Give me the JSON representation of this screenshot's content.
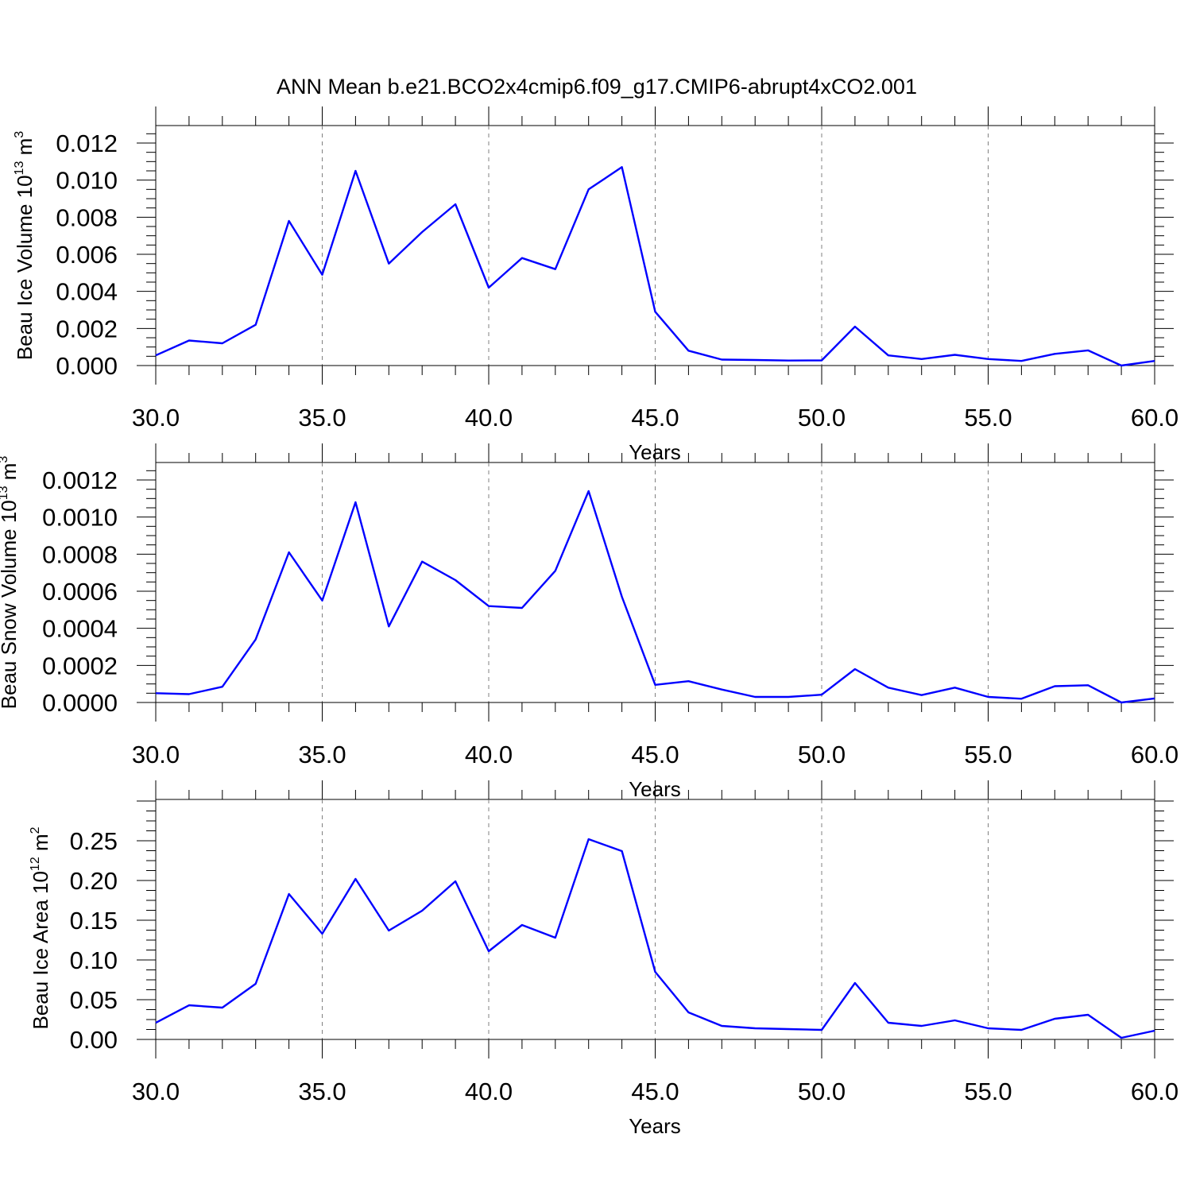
{
  "title": "ANN Mean b.e21.BCO2x4cmip6.f09_g17.CMIP6-abrupt4xCO2.001",
  "colors": {
    "series": "#0000ff",
    "grid": "#808080",
    "axis": "#000000"
  },
  "chart_data": [
    {
      "type": "line",
      "xlabel": "Years",
      "ylabel": {
        "main": "Beau Ice Volume 10",
        "exp": "13",
        "unit": " m",
        "unit_exp": "3"
      },
      "xlim": [
        30,
        60
      ],
      "ylim": [
        0,
        0.012
      ],
      "grid": "x-dashed",
      "x_ticks": [
        "30.0",
        "35.0",
        "40.0",
        "45.0",
        "50.0",
        "55.0",
        "60.0"
      ],
      "y_ticks": [
        "0.000",
        "0.002",
        "0.004",
        "0.006",
        "0.008",
        "0.010",
        "0.012"
      ],
      "x": [
        30,
        31,
        32,
        33,
        34,
        35,
        36,
        37,
        38,
        39,
        40,
        41,
        42,
        43,
        44,
        45,
        46,
        47,
        48,
        49,
        50,
        51,
        52,
        53,
        54,
        55,
        56,
        57,
        58,
        59,
        60
      ],
      "values": [
        0.00055,
        0.00135,
        0.0012,
        0.0022,
        0.0078,
        0.0049,
        0.0105,
        0.0055,
        0.0072,
        0.0087,
        0.0042,
        0.0058,
        0.0052,
        0.0095,
        0.0107,
        0.0029,
        0.0008,
        0.00032,
        0.0003,
        0.00027,
        0.00028,
        0.0021,
        0.00055,
        0.00035,
        0.00058,
        0.00035,
        0.00025,
        0.00063,
        0.00082,
        0.0,
        0.00025
      ]
    },
    {
      "type": "line",
      "xlabel": "Years",
      "ylabel": {
        "main": "Beau Snow Volume 10",
        "exp": "13",
        "unit": " m",
        "unit_exp": "3"
      },
      "xlim": [
        30,
        60
      ],
      "ylim": [
        0,
        0.0012
      ],
      "grid": "x-dashed",
      "x_ticks": [
        "30.0",
        "35.0",
        "40.0",
        "45.0",
        "50.0",
        "55.0",
        "60.0"
      ],
      "y_ticks": [
        "0.0000",
        "0.0002",
        "0.0004",
        "0.0006",
        "0.0008",
        "0.0010",
        "0.0012"
      ],
      "x": [
        30,
        31,
        32,
        33,
        34,
        35,
        36,
        37,
        38,
        39,
        40,
        41,
        42,
        43,
        44,
        45,
        46,
        47,
        48,
        49,
        50,
        51,
        52,
        53,
        54,
        55,
        56,
        57,
        58,
        59,
        60
      ],
      "values": [
        5e-05,
        4.5e-05,
        8.5e-05,
        0.00034,
        0.00081,
        0.00055,
        0.00108,
        0.00041,
        0.00076,
        0.00066,
        0.00052,
        0.00051,
        0.00071,
        0.00114,
        0.00057,
        9.5e-05,
        0.000115,
        7e-05,
        3e-05,
        3e-05,
        4.2e-05,
        0.00018,
        8e-05,
        4e-05,
        8e-05,
        3e-05,
        2e-05,
        8.8e-05,
        9.3e-05,
        0.0,
        2.2e-05
      ]
    },
    {
      "type": "line",
      "xlabel": "Years",
      "ylabel": {
        "main": "Beau Ice Area 10",
        "exp": "12",
        "unit": " m",
        "unit_exp": "2"
      },
      "xlim": [
        30,
        60
      ],
      "ylim": [
        0,
        0.28
      ],
      "grid": "x-dashed",
      "x_ticks": [
        "30.0",
        "35.0",
        "40.0",
        "45.0",
        "50.0",
        "55.0",
        "60.0"
      ],
      "y_ticks": [
        "0.00",
        "0.05",
        "0.10",
        "0.15",
        "0.20",
        "0.25"
      ],
      "x": [
        30,
        31,
        32,
        33,
        34,
        35,
        36,
        37,
        38,
        39,
        40,
        41,
        42,
        43,
        44,
        45,
        46,
        47,
        48,
        49,
        50,
        51,
        52,
        53,
        54,
        55,
        56,
        57,
        58,
        59,
        60
      ],
      "values": [
        0.021,
        0.043,
        0.04,
        0.07,
        0.183,
        0.133,
        0.202,
        0.137,
        0.162,
        0.199,
        0.111,
        0.144,
        0.128,
        0.252,
        0.237,
        0.085,
        0.034,
        0.017,
        0.014,
        0.013,
        0.012,
        0.071,
        0.021,
        0.017,
        0.024,
        0.014,
        0.012,
        0.026,
        0.031,
        0.002,
        0.011
      ]
    }
  ]
}
